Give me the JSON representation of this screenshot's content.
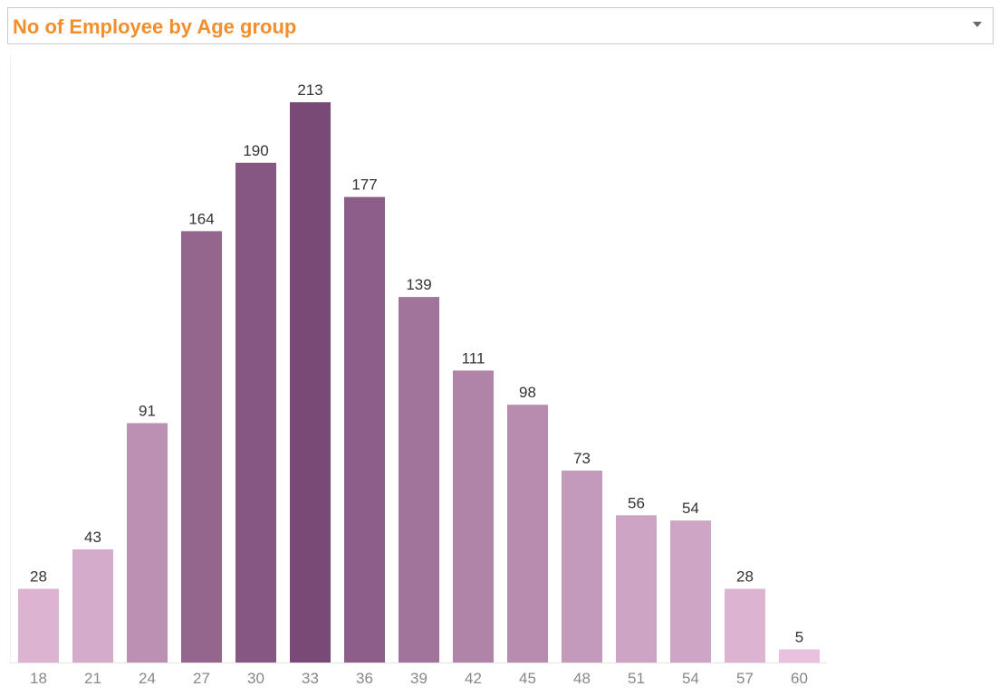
{
  "header": {
    "title": "No of Employee by Age group"
  },
  "chart_data": {
    "type": "bar",
    "title": "No of Employee by Age group",
    "xlabel": "",
    "ylabel": "",
    "categories": [
      "18",
      "21",
      "24",
      "27",
      "30",
      "33",
      "36",
      "39",
      "42",
      "45",
      "48",
      "51",
      "54",
      "57",
      "60"
    ],
    "values": [
      28,
      43,
      91,
      164,
      190,
      213,
      177,
      139,
      111,
      98,
      73,
      56,
      54,
      28,
      5
    ],
    "ylim": [
      0,
      213
    ],
    "grid": false,
    "data_labels": true,
    "colors": {
      "low": "#ebc4e0",
      "high": "#7a4a76",
      "title": "#f28e2b",
      "label": "#333333",
      "tick": "#888888"
    }
  }
}
